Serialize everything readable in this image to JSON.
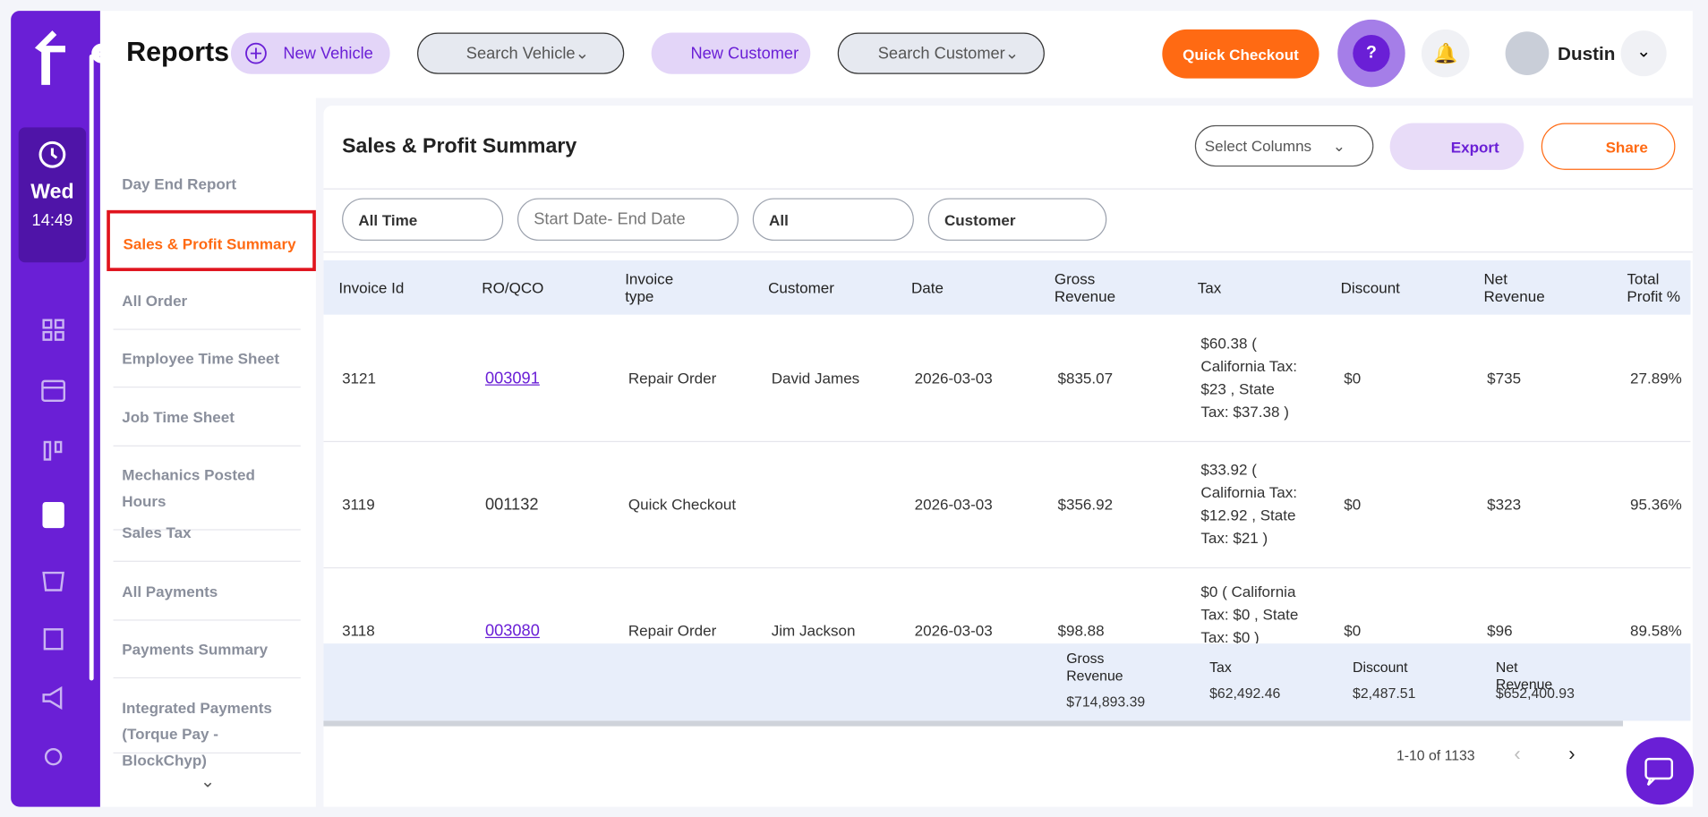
{
  "header": {
    "title": "Reports",
    "new_vehicle": "New Vehicle",
    "search_vehicle": "Search Vehicle",
    "new_customer": "New Customer",
    "search_customer": "Search Customer",
    "quick_checkout": "Quick Checkout",
    "user": "Dustin"
  },
  "sidebar": {
    "day": "Wed",
    "time": "14:49"
  },
  "menu": {
    "items": [
      "Day End Report",
      "Sales & Profit Summary",
      "All Order",
      "Employee Time Sheet",
      "Job Time Sheet",
      "Mechanics Posted Hours",
      "Sales Tax",
      "All Payments",
      "Payments Summary",
      "Integrated Payments (Torque Pay - BlockChyp)"
    ],
    "active": 1
  },
  "panel": {
    "title": "Sales & Profit Summary",
    "select_columns": "Select Columns",
    "export": "Export",
    "share": "Share"
  },
  "filters": [
    "All Time",
    "Start Date- End Date",
    "All",
    "Customer"
  ],
  "table": {
    "columns": [
      "Invoice Id",
      "RO/QCO",
      "Invoice type",
      "Customer",
      "Date",
      "Gross Revenue",
      "Tax",
      "Discount",
      "Net Revenue",
      "Total Profit %"
    ],
    "rows": [
      [
        "3121",
        "003091",
        "Repair Order",
        "David James",
        "2026-03-03",
        "$835.07",
        "$60.38 ( California Tax: $23 , State Tax: $37.38 )",
        "$0",
        "$735",
        "27.89%"
      ],
      [
        "3119",
        "001132",
        "Quick Checkout",
        null,
        "2026-03-03",
        "$356.92",
        "$33.92 ( California Tax: $12.92 , State Tax: $21 )",
        "$0",
        "$323",
        "95.36%"
      ],
      [
        "3118",
        "003080",
        "Repair Order",
        "Jim Jackson",
        "2026-03-03",
        "$98.88",
        "$0 ( California Tax: $0 , State Tax: $0 )",
        "$0",
        "$96",
        "89.58%"
      ]
    ],
    "linked_rows": [
      0,
      2
    ]
  },
  "totals": [
    {
      "label": "Gross Revenue",
      "value": "$714,893.39"
    },
    {
      "label": "Tax",
      "value": "$62,492.46"
    },
    {
      "label": "Discount",
      "value": "$2,487.51"
    },
    {
      "label": "Net Revenue",
      "value": "$652,400.93"
    }
  ],
  "pagination": "1-10 of 1133"
}
